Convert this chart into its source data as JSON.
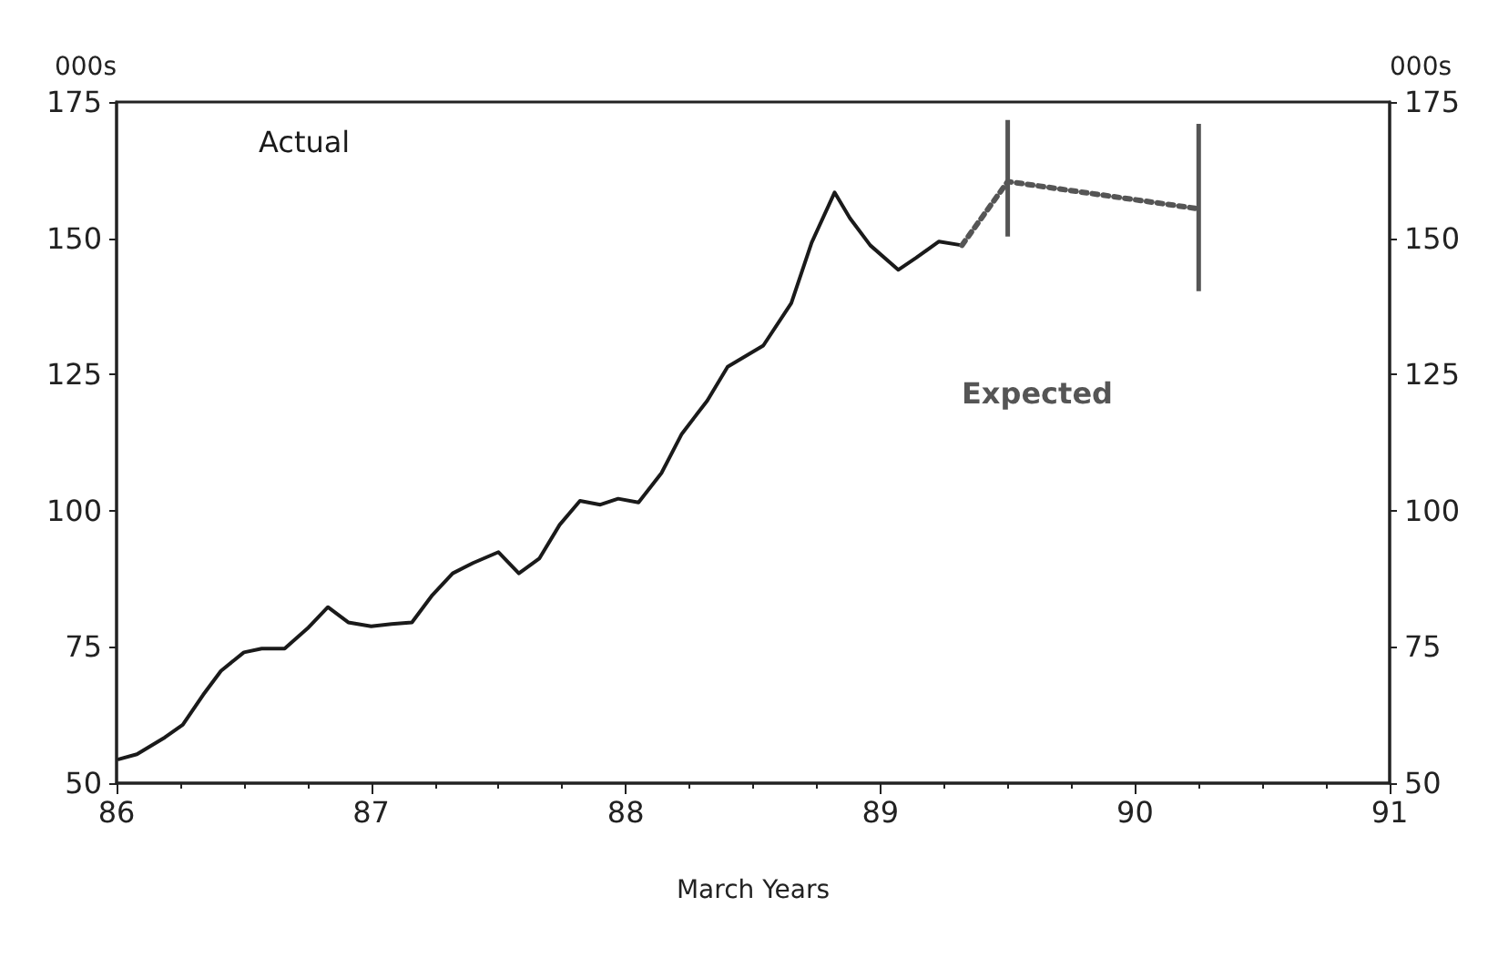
{
  "chart_data": {
    "type": "line",
    "xlabel": "March Years",
    "ylabel": "000s",
    "y2label": "000s",
    "xlim": [
      86,
      91
    ],
    "xticks": [
      86,
      87,
      88,
      89,
      90,
      91
    ],
    "ylim": [
      50,
      175
    ],
    "yticks": [
      50,
      75,
      100,
      125,
      150,
      175
    ],
    "y2lim": [
      50,
      175
    ],
    "y2ticks": [
      50,
      75,
      100,
      125,
      150,
      175
    ],
    "grid": false,
    "legend": false,
    "marker": "none",
    "series": [
      {
        "name": "Actual",
        "color": "#1a1a1a",
        "line_style": "solid",
        "x": [
          86.01,
          86.08,
          86.19,
          86.26,
          86.34,
          86.41,
          86.5,
          86.57,
          86.66,
          86.75,
          86.83,
          86.91,
          87.0,
          87.08,
          87.16,
          87.24,
          87.32,
          87.4,
          87.5,
          87.58,
          87.66,
          87.74,
          87.82,
          87.9,
          87.97,
          88.05,
          88.14,
          88.22,
          88.32,
          88.4,
          88.54,
          88.65,
          88.73,
          88.82,
          88.88,
          88.96,
          89.07,
          89.14,
          89.23,
          89.32
        ],
        "values": [
          54.4,
          55.3,
          58.4,
          60.7,
          66.2,
          70.6,
          74.0,
          74.7,
          74.7,
          78.4,
          82.3,
          79.5,
          78.8,
          79.2,
          79.5,
          84.5,
          88.5,
          90.4,
          92.4,
          88.5,
          91.2,
          97.4,
          101.8,
          101.1,
          102.2,
          101.5,
          106.9,
          114.1,
          120.2,
          126.4,
          130.3,
          138.1,
          149.2,
          158.4,
          153.7,
          148.7,
          144.2,
          146.4,
          149.4,
          148.7
        ]
      },
      {
        "name": "Expected",
        "color": "#555555",
        "line_style": "dotted",
        "x": [
          89.32,
          89.5,
          90.25
        ],
        "values": [
          148.7,
          160.4,
          155.4
        ],
        "errors": [
          null,
          [
            150.3,
            171.7
          ],
          [
            140.3,
            171.0
          ]
        ]
      }
    ]
  }
}
